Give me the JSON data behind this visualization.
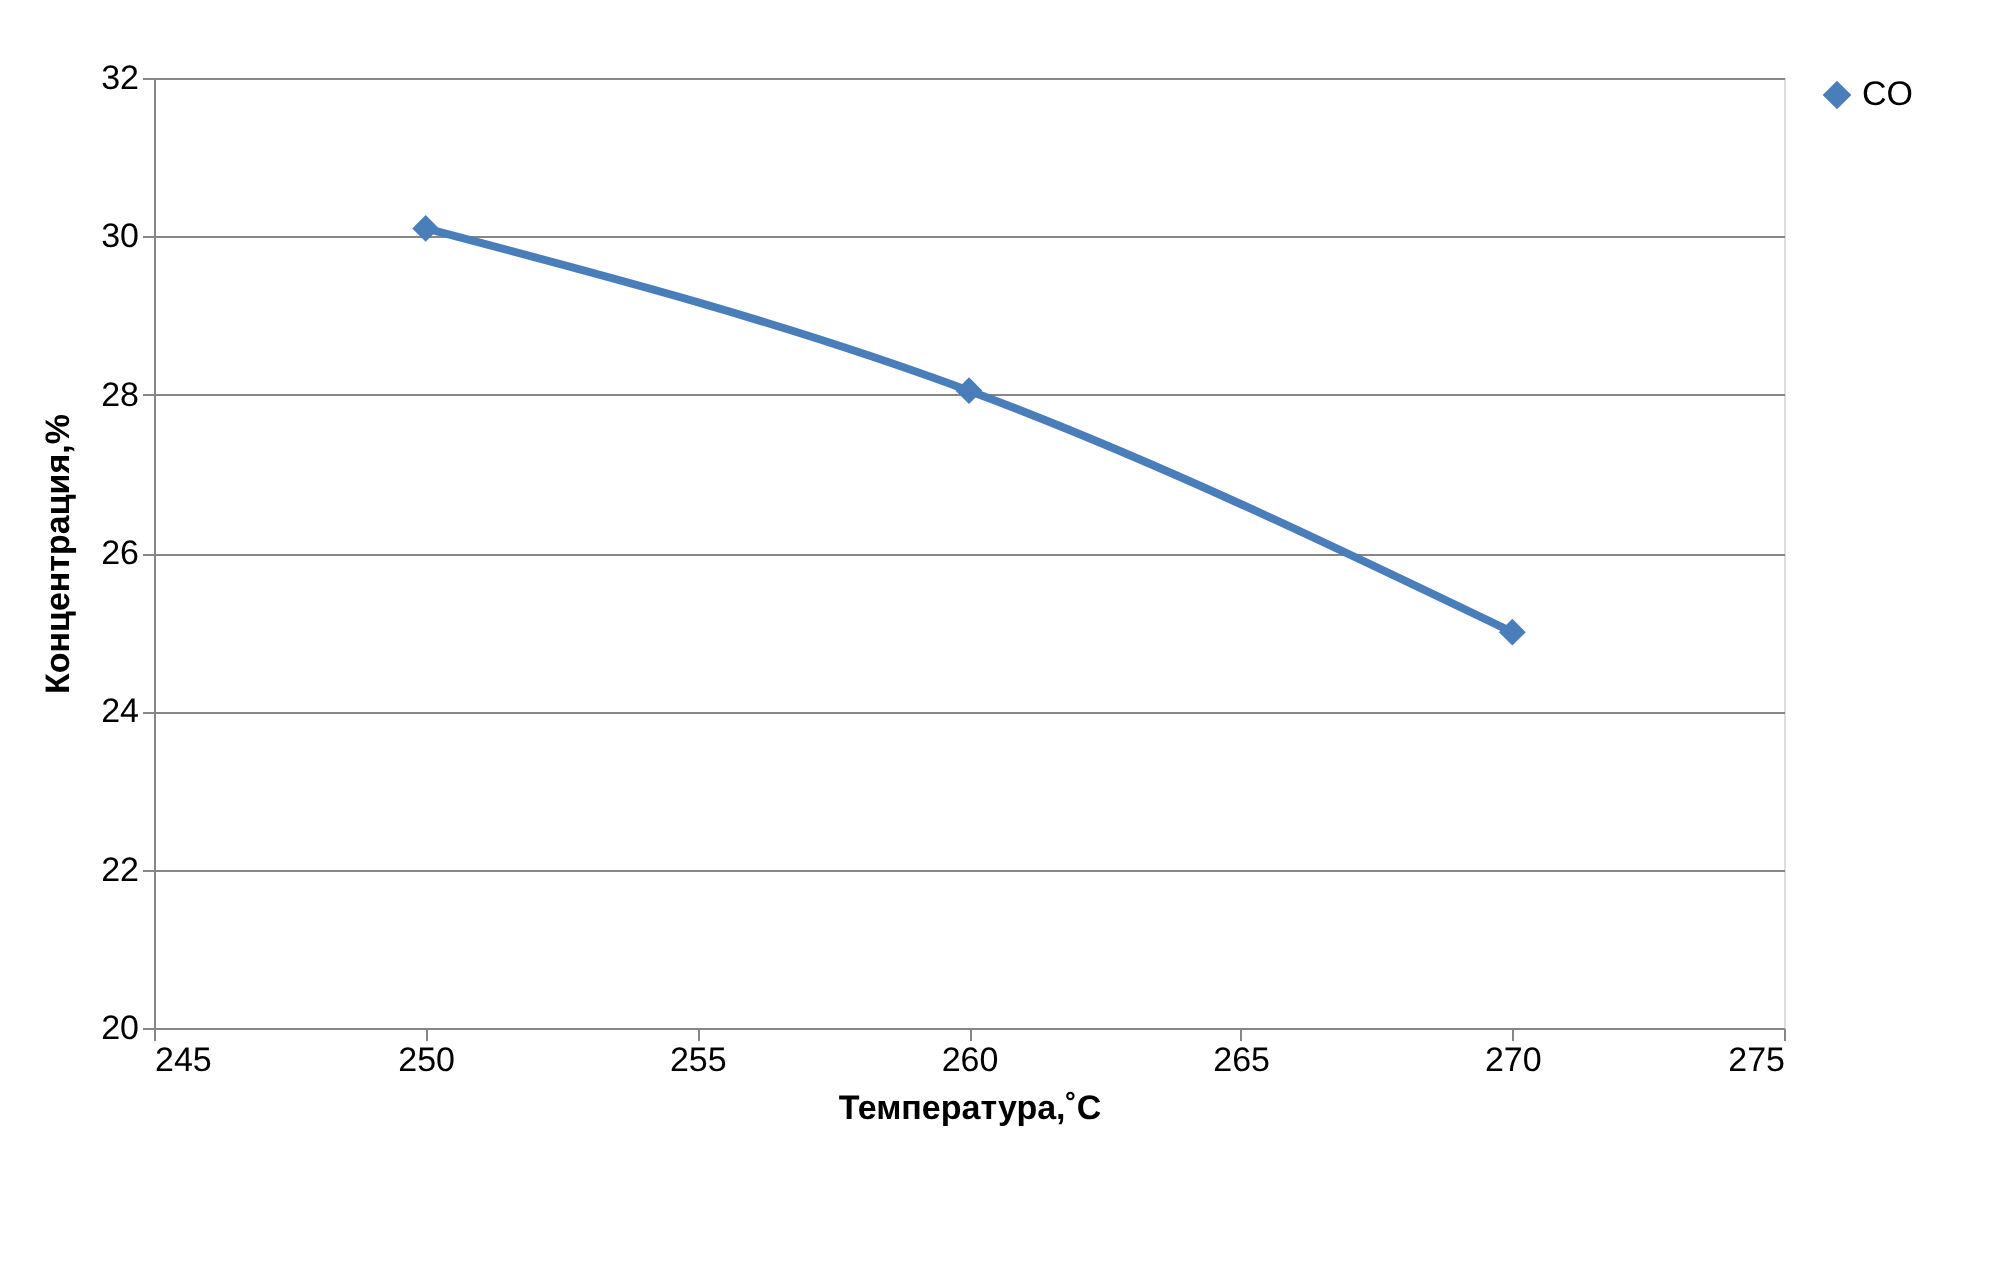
{
  "chart_data": {
    "type": "line",
    "xlabel": "Температура,˚С",
    "ylabel": "Концентрация,%",
    "x": [
      250,
      260,
      270
    ],
    "series": [
      {
        "name": "CO",
        "color": "#4a7ebb",
        "values": [
          30.1,
          28.05,
          25.0
        ]
      }
    ],
    "xlim": [
      245,
      275
    ],
    "xticks": [
      245,
      250,
      255,
      260,
      265,
      270,
      275
    ],
    "ylim": [
      20,
      32
    ],
    "yticks": [
      20,
      22,
      24,
      26,
      28,
      30,
      32
    ],
    "grid": "y",
    "legend": "right",
    "marker": "diamond",
    "line_style": "solid"
  }
}
